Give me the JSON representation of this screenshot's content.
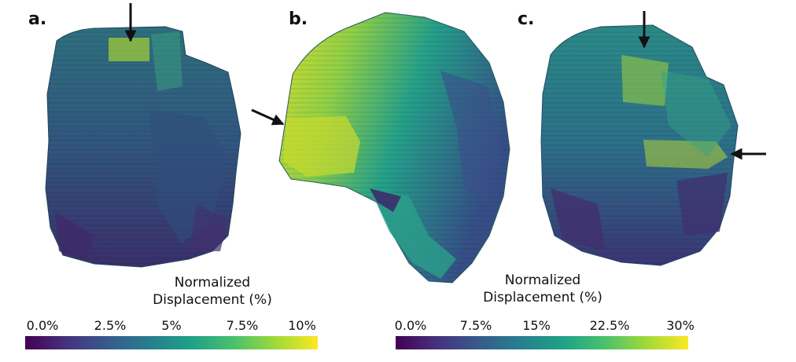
{
  "panels": [
    {
      "label": "a."
    },
    {
      "label": "b."
    },
    {
      "label": "c."
    }
  ],
  "colorbars": [
    {
      "title_line1": "Normalized",
      "title_line2": "Displacement (%)",
      "ticks": [
        "0.0%",
        "2.5%",
        "5%",
        "7.5%",
        "10%"
      ]
    },
    {
      "title_line1": "Normalized",
      "title_line2": "Displacement (%)",
      "ticks": [
        "0.0%",
        "7.5%",
        "15%",
        "22.5%",
        "30%"
      ]
    }
  ],
  "colormap": [
    "#440154",
    "#46327e",
    "#365c8d",
    "#277f8e",
    "#1fa187",
    "#4ac16d",
    "#a0da39",
    "#fde725"
  ]
}
